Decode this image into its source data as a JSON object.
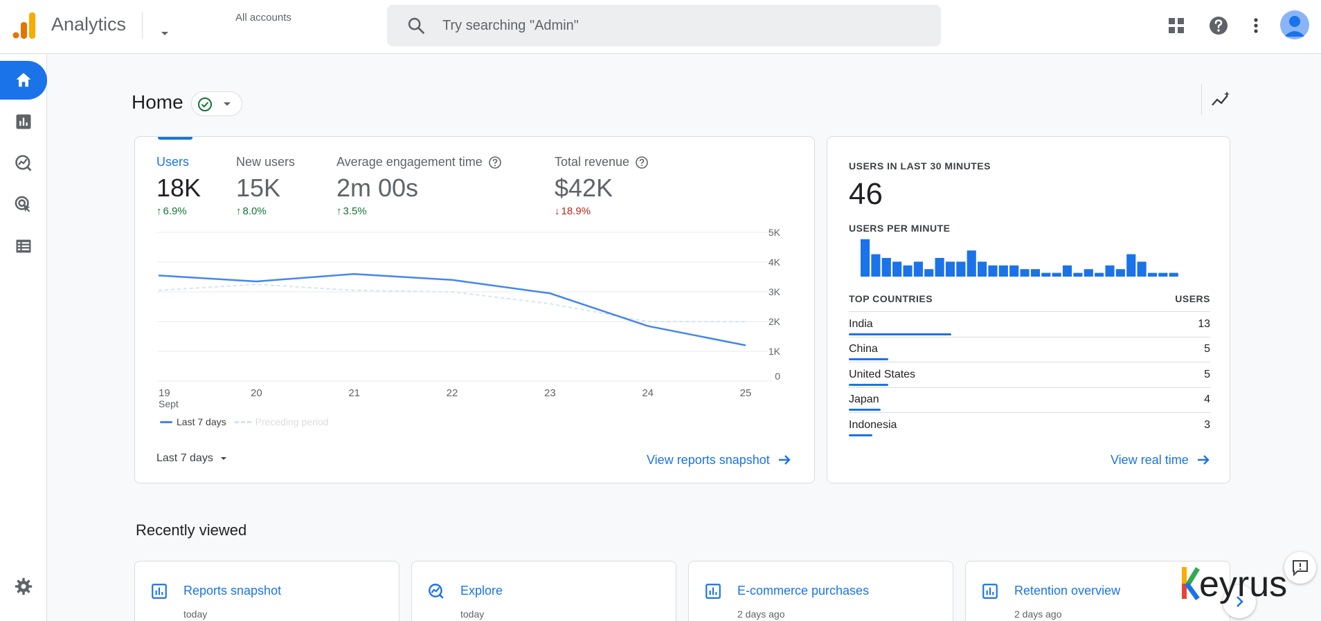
{
  "header": {
    "app_title": "Analytics",
    "account_label": "All accounts",
    "search_placeholder": "Try searching \"Admin\""
  },
  "page": {
    "title": "Home"
  },
  "metrics": [
    {
      "label": "Users",
      "value": "18K",
      "delta": "6.9%",
      "direction": "up"
    },
    {
      "label": "New users",
      "value": "15K",
      "delta": "8.0%",
      "direction": "up"
    },
    {
      "label": "Average engagement time",
      "value": "2m 00s",
      "delta": "3.5%",
      "direction": "up"
    },
    {
      "label": "Total revenue",
      "value": "$42K",
      "delta": "18.9%",
      "direction": "down"
    }
  ],
  "chart_data": {
    "type": "line",
    "categories": [
      "19",
      "20",
      "21",
      "22",
      "23",
      "24",
      "25"
    ],
    "x_sublabel": "Sept",
    "series": [
      {
        "name": "Last 7 days",
        "values": [
          3.55,
          3.35,
          3.6,
          3.4,
          2.95,
          1.85,
          1.2
        ]
      },
      {
        "name": "Preceding period",
        "values": [
          3.05,
          3.25,
          3.05,
          3.0,
          2.6,
          2.0,
          2.0
        ]
      }
    ],
    "y_ticks": [
      "0",
      "1K",
      "2K",
      "3K",
      "4K",
      "5K"
    ],
    "ylim": [
      0,
      5
    ],
    "colors": {
      "current": "#4285f4",
      "previous": "#d2e3fc"
    }
  },
  "main_card": {
    "range_label": "Last 7 days",
    "link_label": "View reports snapshot"
  },
  "realtime": {
    "heading": "USERS IN LAST 30 MINUTES",
    "count": "46",
    "per_minute_heading": "USERS PER MINUTE",
    "per_minute": [
      10,
      6,
      5,
      4,
      3,
      4,
      2,
      5,
      4,
      4,
      7,
      4,
      3,
      3,
      3,
      2,
      2,
      1,
      1,
      3,
      1,
      2,
      1,
      3,
      2,
      6,
      4,
      1,
      1,
      1
    ],
    "countries_heading": "TOP COUNTRIES",
    "users_heading": "USERS",
    "countries": [
      {
        "name": "India",
        "users": "13",
        "value": 13
      },
      {
        "name": "China",
        "users": "5",
        "value": 5
      },
      {
        "name": "United States",
        "users": "5",
        "value": 5
      },
      {
        "name": "Japan",
        "users": "4",
        "value": 4
      },
      {
        "name": "Indonesia",
        "users": "3",
        "value": 3
      }
    ],
    "link_label": "View real time"
  },
  "recently_viewed": {
    "title": "Recently viewed",
    "items": [
      {
        "title": "Reports snapshot",
        "when": "today",
        "icon": "bar-chart-icon"
      },
      {
        "title": "Explore",
        "when": "today",
        "icon": "explore-icon"
      },
      {
        "title": "E-commerce purchases",
        "when": "2 days ago",
        "icon": "bar-chart-icon"
      },
      {
        "title": "Retention overview",
        "when": "2 days ago",
        "icon": "bar-chart-icon"
      }
    ]
  },
  "watermark_text": "keyrus",
  "colors": {
    "accent": "#1a73e8",
    "up": "#137333",
    "down": "#c5221f",
    "logo_orange": "#f9ab00",
    "logo_dark": "#e37400"
  }
}
